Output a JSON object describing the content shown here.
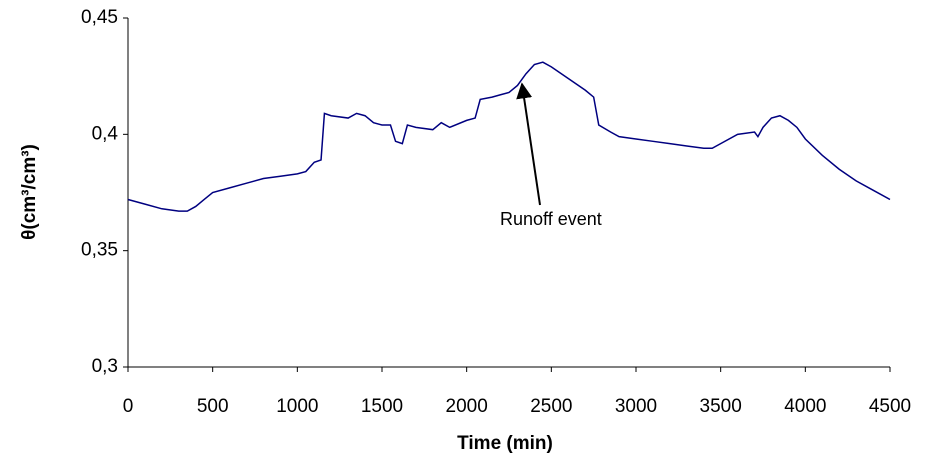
{
  "chart_data": {
    "type": "line",
    "xlabel": "Time (min)",
    "ylabel": "θ(cm³/cm³)",
    "annotations": [
      "Runoff event"
    ],
    "color": "#000080",
    "x": [
      0,
      100,
      200,
      300,
      350,
      400,
      450,
      500,
      600,
      700,
      800,
      900,
      1000,
      1050,
      1100,
      1140,
      1160,
      1200,
      1300,
      1350,
      1400,
      1450,
      1500,
      1550,
      1580,
      1620,
      1650,
      1700,
      1800,
      1850,
      1900,
      2000,
      2050,
      2080,
      2150,
      2200,
      2250,
      2300,
      2350,
      2400,
      2450,
      2500,
      2600,
      2700,
      2750,
      2780,
      2850,
      2900,
      3000,
      3100,
      3200,
      3300,
      3400,
      3450,
      3500,
      3600,
      3700,
      3720,
      3750,
      3800,
      3850,
      3900,
      3950,
      4000,
      4100,
      4200,
      4300,
      4400,
      4500
    ],
    "values": [
      0.372,
      0.37,
      0.368,
      0.367,
      0.367,
      0.369,
      0.372,
      0.375,
      0.377,
      0.379,
      0.381,
      0.382,
      0.383,
      0.384,
      0.388,
      0.389,
      0.409,
      0.408,
      0.407,
      0.409,
      0.408,
      0.405,
      0.404,
      0.404,
      0.397,
      0.396,
      0.404,
      0.403,
      0.402,
      0.405,
      0.403,
      0.406,
      0.407,
      0.415,
      0.416,
      0.417,
      0.418,
      0.421,
      0.426,
      0.43,
      0.431,
      0.429,
      0.424,
      0.419,
      0.416,
      0.404,
      0.401,
      0.399,
      0.398,
      0.397,
      0.396,
      0.395,
      0.394,
      0.394,
      0.396,
      0.4,
      0.401,
      0.399,
      0.403,
      0.407,
      0.408,
      0.406,
      0.403,
      0.398,
      0.391,
      0.385,
      0.38,
      0.376,
      0.372
    ],
    "xlim": [
      0,
      4500
    ],
    "xticks": [
      0,
      500,
      1000,
      1500,
      2000,
      2500,
      3000,
      3500,
      4000,
      4500
    ],
    "ylim": [
      0.3,
      0.45
    ],
    "yticks": [
      {
        "value": 0.3,
        "label": "0,3"
      },
      {
        "value": 0.35,
        "label": "0,35"
      },
      {
        "value": 0.4,
        "label": "0,4"
      },
      {
        "value": 0.45,
        "label": "0,45"
      }
    ]
  }
}
